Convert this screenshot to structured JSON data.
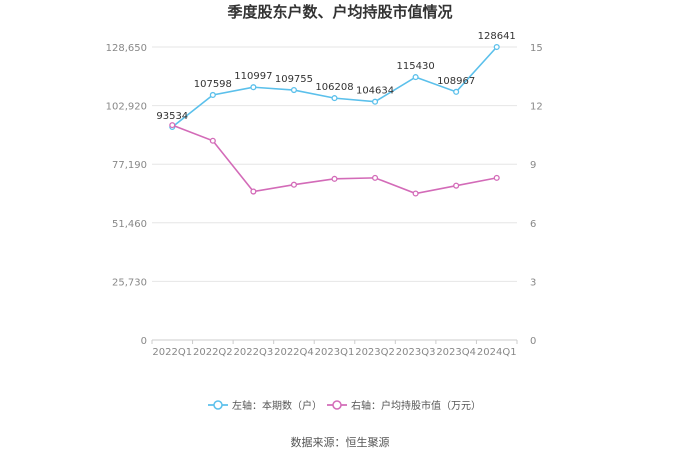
{
  "chart_data": {
    "type": "line",
    "title": "季度股东户数、户均持股市值情况",
    "categories": [
      "2022Q1",
      "2022Q2",
      "2022Q3",
      "2022Q4",
      "2023Q1",
      "2023Q2",
      "2023Q3",
      "2023Q4",
      "2024Q1"
    ],
    "series": [
      {
        "name": "左轴：本期数（户）",
        "axis": "left",
        "color": "#5bc0eb",
        "values": [
          93534,
          107598,
          110997,
          109755,
          106208,
          104634,
          115430,
          108967,
          128641
        ],
        "data_labels": [
          "93534",
          "107598",
          "110997",
          "109755",
          "106208",
          "104634",
          "115430",
          "108967",
          "128641"
        ]
      },
      {
        "name": "右轴：户均持股市值（万元）",
        "axis": "right",
        "color": "#d36bb8",
        "values": [
          11.0,
          10.2,
          7.6,
          7.95,
          8.25,
          8.3,
          7.5,
          7.9,
          8.3
        ]
      }
    ],
    "y_left": {
      "ylim": [
        0,
        128650
      ],
      "ticks": [
        "0",
        "25,730",
        "51,460",
        "77,190",
        "102,920",
        "128,650"
      ]
    },
    "y_right": {
      "ylim": [
        0,
        15
      ],
      "ticks": [
        "0",
        "3",
        "6",
        "9",
        "12",
        "15"
      ]
    },
    "grid": true,
    "legend_position": "bottom"
  },
  "source": "数据来源：恒生聚源"
}
